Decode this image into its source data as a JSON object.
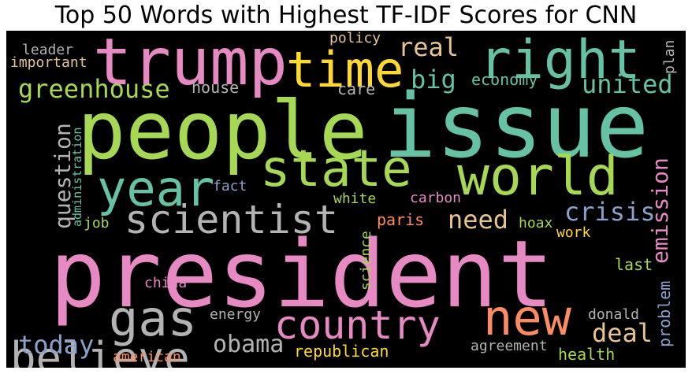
{
  "title": "Top 50 Words with Highest TF-IDF Scores for CNN",
  "colors": {
    "pink": "#e78ac3",
    "green": "#a6d854",
    "teal": "#66c2a5",
    "orange": "#fc8d62",
    "blue": "#8da0cb",
    "yellow": "#ffd92f",
    "tan": "#e5c494",
    "gray": "#b3b3b3"
  },
  "words": [
    {
      "text": "president",
      "color": "pink"
    },
    {
      "text": "people",
      "color": "green"
    },
    {
      "text": "issue",
      "color": "teal"
    },
    {
      "text": "trump",
      "color": "pink"
    },
    {
      "text": "right",
      "color": "teal"
    },
    {
      "text": "time",
      "color": "yellow"
    },
    {
      "text": "year",
      "color": "teal"
    },
    {
      "text": "state",
      "color": "green"
    },
    {
      "text": "world",
      "color": "green"
    },
    {
      "text": "scientist",
      "color": "gray"
    },
    {
      "text": "country",
      "color": "pink"
    },
    {
      "text": "new",
      "color": "orange"
    },
    {
      "text": "gas",
      "color": "gray"
    },
    {
      "text": "believe",
      "color": "gray"
    },
    {
      "text": "obama",
      "color": "gray"
    },
    {
      "text": "greenhouse",
      "color": "green"
    },
    {
      "text": "united",
      "color": "teal"
    },
    {
      "text": "real",
      "color": "tan"
    },
    {
      "text": "big",
      "color": "teal"
    },
    {
      "text": "crisis",
      "color": "blue"
    },
    {
      "text": "need",
      "color": "tan"
    },
    {
      "text": "emission",
      "color": "pink"
    },
    {
      "text": "today",
      "color": "blue"
    },
    {
      "text": "deal",
      "color": "tan"
    },
    {
      "text": "question",
      "color": "gray"
    },
    {
      "text": "house",
      "color": "gray"
    },
    {
      "text": "care",
      "color": "gray"
    },
    {
      "text": "economy",
      "color": "teal"
    },
    {
      "text": "policy",
      "color": "tan"
    },
    {
      "text": "leader",
      "color": "gray"
    },
    {
      "text": "important",
      "color": "tan"
    },
    {
      "text": "plan",
      "color": "gray"
    },
    {
      "text": "fact",
      "color": "blue"
    },
    {
      "text": "white",
      "color": "green"
    },
    {
      "text": "carbon",
      "color": "pink"
    },
    {
      "text": "paris",
      "color": "orange"
    },
    {
      "text": "hoax",
      "color": "green"
    },
    {
      "text": "work",
      "color": "yellow"
    },
    {
      "text": "administration",
      "color": "teal"
    },
    {
      "text": "job",
      "color": "green"
    },
    {
      "text": "science",
      "color": "green"
    },
    {
      "text": "last",
      "color": "green"
    },
    {
      "text": "china",
      "color": "pink"
    },
    {
      "text": "energy",
      "color": "gray"
    },
    {
      "text": "problem",
      "color": "blue"
    },
    {
      "text": "donald",
      "color": "gray"
    },
    {
      "text": "republican",
      "color": "yellow"
    },
    {
      "text": "agreement",
      "color": "gray"
    },
    {
      "text": "american",
      "color": "orange"
    },
    {
      "text": "health",
      "color": "green"
    }
  ]
}
